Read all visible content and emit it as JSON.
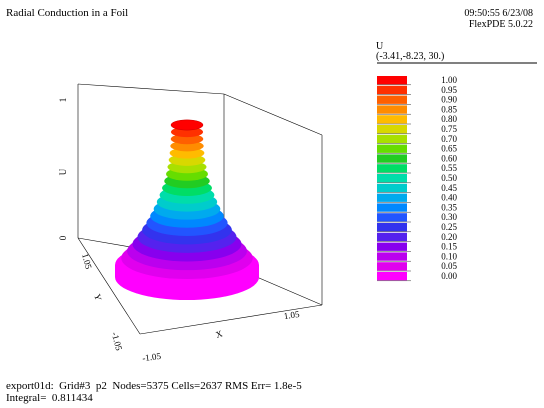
{
  "header": {
    "title": "Radial Conduction in a Foil",
    "timestamp": "09:50:55 6/23/08",
    "version": "FlexPDE 5.0.22"
  },
  "legend": {
    "variable": "U",
    "viewpoint": "(-3.41,-8.23, 30.)"
  },
  "footer": {
    "line1": "export01d:  Grid#3  p2  Nodes=5375 Cells=2637 RMS Err= 1.8e-5",
    "line2": "Integral=  0.811434"
  },
  "chart_data": {
    "type": "surface",
    "variable": "U",
    "axes": {
      "x": {
        "label": "X",
        "range": [
          -1.05,
          1.05
        ],
        "tick_labels": [
          "-1.05",
          "1.05"
        ]
      },
      "y": {
        "label": "Y",
        "range": [
          -1.05,
          1.05
        ],
        "tick_labels": [
          "1.05",
          "-1.05"
        ]
      },
      "z": {
        "label": "U",
        "range": [
          0,
          1
        ],
        "tick_labels": [
          "0",
          "1"
        ]
      }
    },
    "color_scale": {
      "levels": [
        "1.00",
        "0.95",
        "0.90",
        "0.85",
        "0.80",
        "0.75",
        "0.70",
        "0.65",
        "0.60",
        "0.55",
        "0.50",
        "0.45",
        "0.40",
        "0.35",
        "0.30",
        "0.25",
        "0.20",
        "0.15",
        "0.10",
        "0.05",
        "0.00"
      ],
      "colors": [
        "#ff0000",
        "#ff3000",
        "#ff6000",
        "#ff8c00",
        "#ffbb00",
        "#d8d800",
        "#a8e000",
        "#66dd00",
        "#22cc22",
        "#00dd66",
        "#00ddaa",
        "#00cccc",
        "#00aaee",
        "#0088ff",
        "#2255ff",
        "#3333ee",
        "#5522ee",
        "#8800ee",
        "#bb00ee",
        "#e000ee",
        "#ff00ff"
      ]
    }
  }
}
